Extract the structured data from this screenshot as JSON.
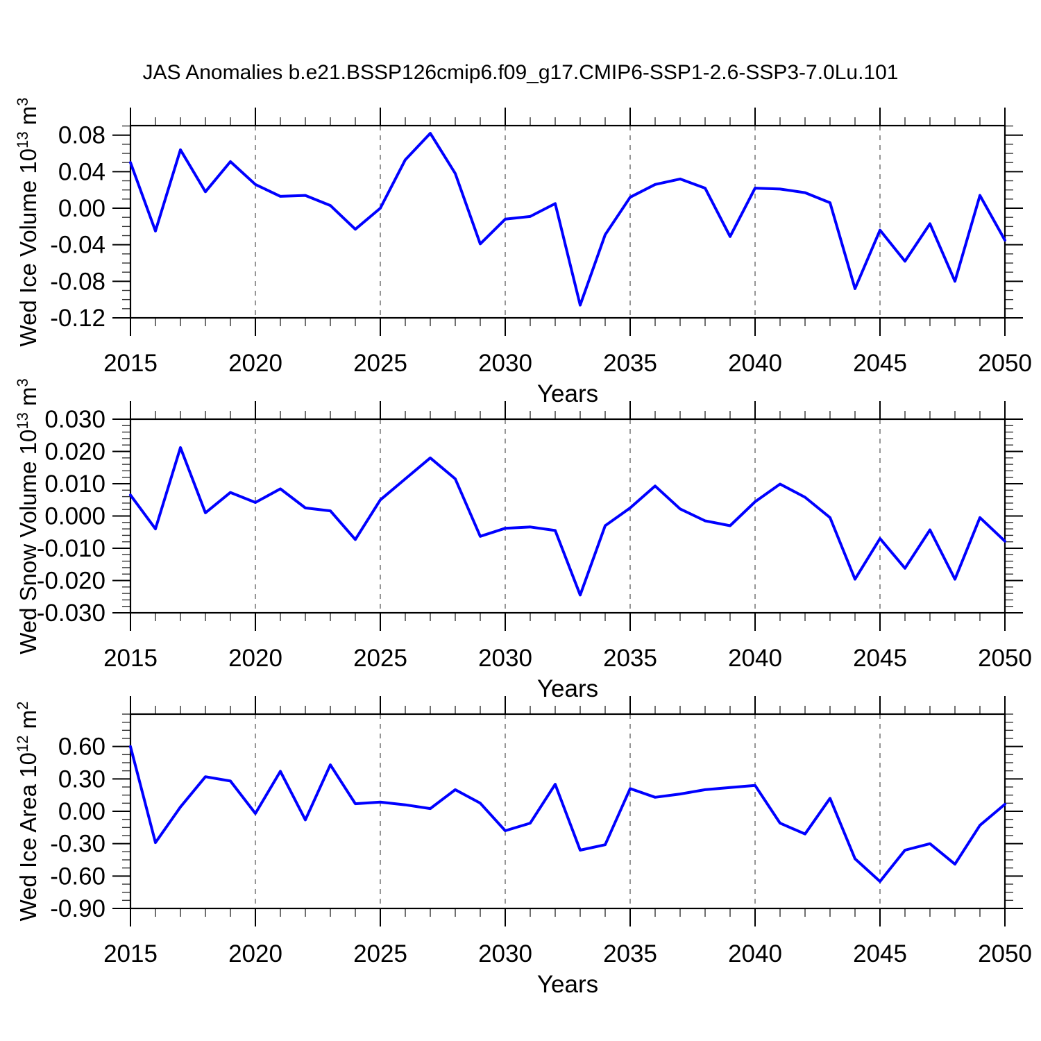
{
  "title": "JAS Anomalies b.e21.BSSP126cmip6.f09_g17.CMIP6-SSP1-2.6-SSP3-7.0Lu.101",
  "xlabel": "Years",
  "line_color": "#0000ff",
  "grid_color": "#8a8a8a",
  "years": [
    2015,
    2016,
    2017,
    2018,
    2019,
    2020,
    2021,
    2022,
    2023,
    2024,
    2025,
    2026,
    2027,
    2028,
    2029,
    2030,
    2031,
    2032,
    2033,
    2034,
    2035,
    2036,
    2037,
    2038,
    2039,
    2040,
    2041,
    2042,
    2043,
    2044,
    2045,
    2046,
    2047,
    2048,
    2049,
    2050
  ],
  "chart_data": [
    {
      "type": "line",
      "name": "wed-ice-volume",
      "ylabel": {
        "prefix": "Wed Ice Volume 10",
        "sup1": "13",
        "mid": " m",
        "sup2": "3"
      },
      "ylim": [
        -0.12,
        0.0904
      ],
      "yticks": [
        0.08,
        0.04,
        0.0,
        -0.04,
        -0.08,
        -0.12
      ],
      "ytick_labels": [
        "0.08",
        "0.04",
        "0.00",
        "-0.04",
        "-0.08",
        "-0.12"
      ],
      "minor_y_step": 0.01,
      "xticks": [
        2015,
        2020,
        2025,
        2030,
        2035,
        2040,
        2045,
        2050
      ],
      "xtick_labels": [
        "2015",
        "2020",
        "2025",
        "2030",
        "2035",
        "2040",
        "2045",
        "2050"
      ],
      "grid_x": [
        2020,
        2025,
        2030,
        2035,
        2040,
        2045
      ],
      "values": [
        0.05,
        -0.025,
        0.064,
        0.018,
        0.051,
        0.026,
        0.013,
        0.014,
        0.003,
        -0.023,
        0.0,
        0.053,
        0.082,
        0.038,
        -0.039,
        -0.012,
        -0.009,
        0.005,
        -0.106,
        -0.029,
        0.012,
        0.026,
        0.032,
        0.022,
        -0.031,
        0.022,
        0.021,
        0.017,
        0.006,
        -0.088,
        -0.024,
        -0.058,
        -0.017,
        -0.08,
        0.014,
        -0.035
      ]
    },
    {
      "type": "line",
      "name": "wed-snow-volume",
      "ylabel": {
        "prefix": "Wed Snow Volume 10",
        "sup1": "13",
        "mid": " m",
        "sup2": "3"
      },
      "ylim": [
        -0.03,
        0.03
      ],
      "yticks": [
        0.03,
        0.02,
        0.01,
        0.0,
        -0.01,
        -0.02,
        -0.03
      ],
      "ytick_labels": [
        "0.030",
        "0.020",
        "0.010",
        "0.000",
        "-0.010",
        "-0.020",
        "-0.030"
      ],
      "minor_y_step": 0.002,
      "xticks": [
        2015,
        2020,
        2025,
        2030,
        2035,
        2040,
        2045,
        2050
      ],
      "xtick_labels": [
        "2015",
        "2020",
        "2025",
        "2030",
        "2035",
        "2040",
        "2045",
        "2050"
      ],
      "grid_x": [
        2020,
        2025,
        2030,
        2035,
        2040,
        2045
      ],
      "values": [
        0.0065,
        -0.004,
        0.0212,
        0.001,
        0.0073,
        0.0042,
        0.0084,
        0.0025,
        0.0016,
        -0.0073,
        0.005,
        0.0115,
        0.018,
        0.0115,
        -0.0063,
        -0.0038,
        -0.0034,
        -0.0045,
        -0.0245,
        -0.003,
        0.0025,
        0.0093,
        0.0022,
        -0.0015,
        -0.003,
        0.0044,
        0.0099,
        0.0058,
        -0.0005,
        -0.0196,
        -0.007,
        -0.0162,
        -0.0043,
        -0.0196,
        -0.0005,
        -0.0078
      ]
    },
    {
      "type": "line",
      "name": "wed-ice-area",
      "ylabel": {
        "prefix": "Wed Ice Area 10",
        "sup1": "12",
        "mid": " m",
        "sup2": "2"
      },
      "ylim": [
        -0.9,
        0.9
      ],
      "yticks": [
        0.6,
        0.3,
        0.0,
        -0.3,
        -0.6,
        -0.9
      ],
      "ytick_labels": [
        "0.60",
        "0.30",
        "0.00",
        "-0.30",
        "-0.60",
        "-0.90"
      ],
      "minor_y_step": 0.075,
      "xticks": [
        2015,
        2020,
        2025,
        2030,
        2035,
        2040,
        2045,
        2050
      ],
      "xtick_labels": [
        "2015",
        "2020",
        "2025",
        "2030",
        "2035",
        "2040",
        "2045",
        "2050"
      ],
      "grid_x": [
        2020,
        2025,
        2030,
        2035,
        2040,
        2045
      ],
      "values": [
        0.6,
        -0.29,
        0.04,
        0.32,
        0.28,
        -0.02,
        0.37,
        -0.08,
        0.43,
        0.07,
        0.085,
        0.06,
        0.025,
        0.2,
        0.075,
        -0.18,
        -0.11,
        0.25,
        -0.36,
        -0.31,
        0.21,
        0.13,
        0.16,
        0.2,
        0.22,
        0.24,
        -0.11,
        -0.21,
        0.12,
        -0.44,
        -0.65,
        -0.36,
        -0.3,
        -0.49,
        -0.13,
        0.065
      ]
    }
  ]
}
